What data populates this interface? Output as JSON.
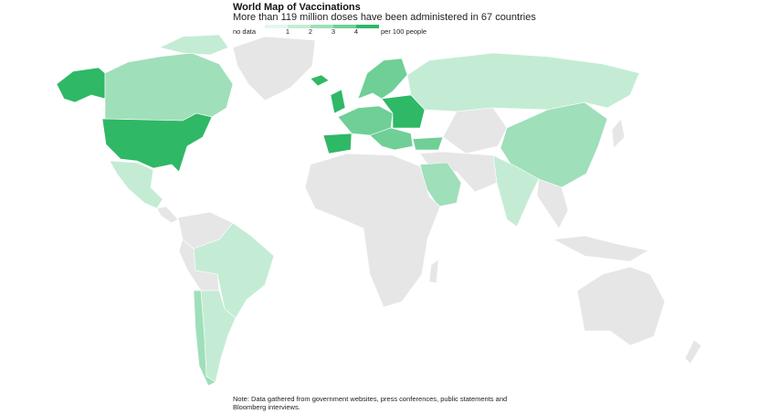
{
  "header": {
    "title": "World Map of Vaccinations",
    "subtitle": "More than 119 million doses have been administered in 67 countries"
  },
  "legend": {
    "no_data": "no data",
    "no_data_color": "#e6e6e6",
    "ticks": [
      1,
      2,
      3,
      4
    ],
    "unit": "per 100 people",
    "colors": [
      "#e4f7ec",
      "#c4ecd4",
      "#9fdfba",
      "#6fcf97",
      "#2fb866"
    ]
  },
  "note": "Note: Data gathered from government websites, press conferences, public statements and Bloomberg interviews."
}
